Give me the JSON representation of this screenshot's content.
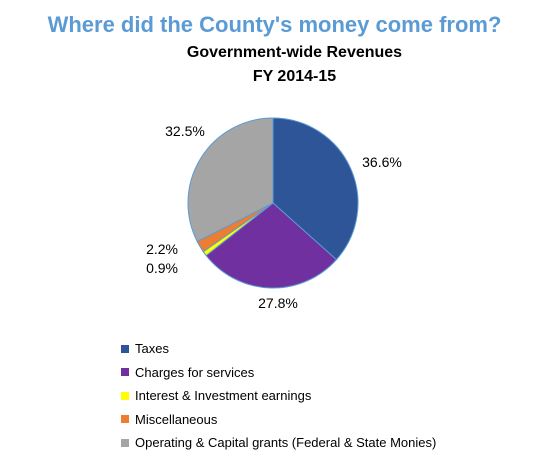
{
  "header": {
    "title": "Where did the County's money come from?",
    "subtitle_line1": "Government-wide Revenues",
    "subtitle_line2": "FY 2014-15"
  },
  "chart_data": {
    "type": "pie",
    "title": "Government-wide Revenues FY 2014-15",
    "slices": [
      {
        "label": "Taxes",
        "value": 36.6,
        "display": "36.6%",
        "color": "#2e5597"
      },
      {
        "label": "Charges for services",
        "value": 27.8,
        "display": "27.8%",
        "color": "#7030a0"
      },
      {
        "label": "Interest & Investment earnings",
        "value": 0.9,
        "display": "0.9%",
        "color": "#ffff00"
      },
      {
        "label": "Miscellaneous",
        "value": 2.2,
        "display": "2.2%",
        "color": "#ed7d31"
      },
      {
        "label": "Operating & Capital grants (Federal & State Monies)",
        "value": 32.5,
        "display": "32.5%",
        "color": "#a5a5a5"
      }
    ],
    "legend_position": "bottom",
    "stroke_color": "#5b9bd5"
  }
}
